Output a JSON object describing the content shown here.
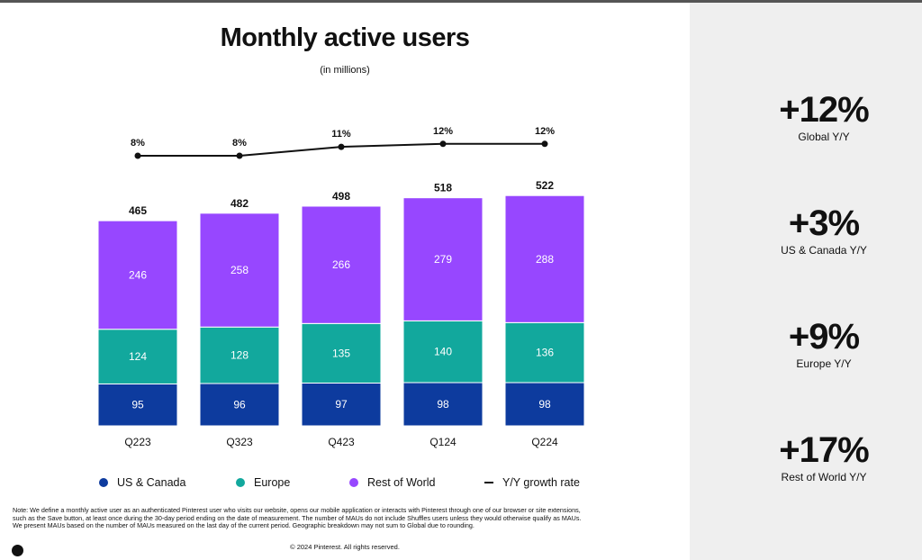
{
  "title": "Monthly active users",
  "subtitle": "(in millions)",
  "chart_data": {
    "type": "bar",
    "stacked": true,
    "categories": [
      "Q223",
      "Q323",
      "Q423",
      "Q124",
      "Q224"
    ],
    "series": [
      {
        "name": "US & Canada",
        "values": [
          95,
          96,
          97,
          98,
          98
        ],
        "color": "#0D3B9E"
      },
      {
        "name": "Europe",
        "values": [
          124,
          128,
          135,
          140,
          136
        ],
        "color": "#12A89D"
      },
      {
        "name": "Rest of World",
        "values": [
          246,
          258,
          266,
          279,
          288
        ],
        "color": "#9747FF"
      }
    ],
    "totals": [
      465,
      482,
      498,
      518,
      522
    ],
    "line": {
      "name": "Y/Y growth rate",
      "values": [
        8,
        8,
        11,
        12,
        12
      ],
      "labels": [
        "8%",
        "8%",
        "11%",
        "12%",
        "12%"
      ],
      "color": "#111111"
    }
  },
  "stats": [
    {
      "value": "+12%",
      "label": "Global Y/Y"
    },
    {
      "value": "+3%",
      "label": "US & Canada Y/Y"
    },
    {
      "value": "+9%",
      "label": "Europe Y/Y"
    },
    {
      "value": "+17%",
      "label": "Rest of World Y/Y"
    }
  ],
  "note": "Note: We define a monthly active user as an authenticated Pinterest user who visits our website, opens our mobile application or interacts with Pinterest through one of our browser or site extensions, such as the Save button, at least once during the 30-day period ending on the date of measurement. The number of MAUs do not include Shuffles users unless they would otherwise qualify as MAUs. We present MAUs based on the number of MAUs measured on the last day of the current period. Geographic breakdown may not sum to Global due to rounding.",
  "copyright": "© 2024 Pinterest. All rights reserved.",
  "logo": "P"
}
